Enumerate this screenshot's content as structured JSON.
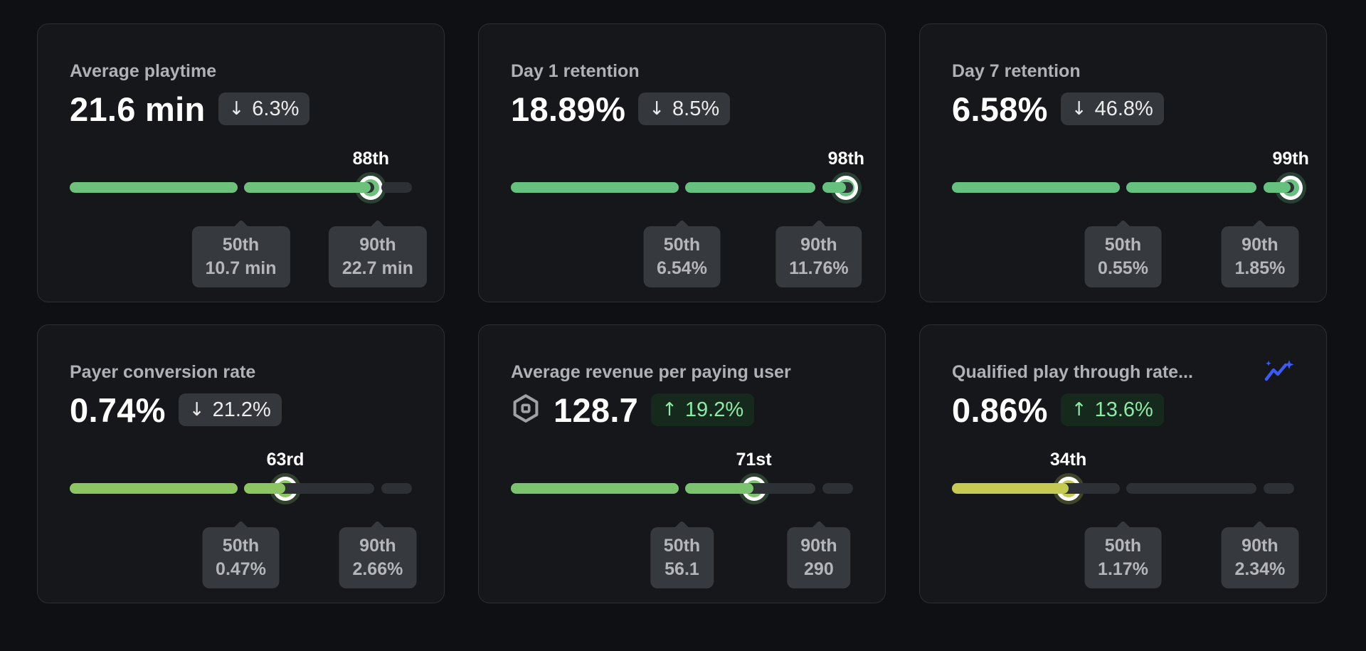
{
  "palette": {
    "page_background": "#0e1013",
    "card_background": "#15171b",
    "card_border": "#2b2e33",
    "track_remainder": "#2d3034",
    "tooltip_background": "#36393d",
    "tooltip_text": "#b4b6b9",
    "badge_down_background": "#34373b",
    "badge_down_text": "#ececed",
    "badge_up_background": "#152a1c",
    "badge_up_text": "#8fe9a6",
    "title_text": "#aeb1b5",
    "value_text": "#ffffff",
    "robux_icon_color": "#9fa1a4",
    "trend_icon_color": "#3b5af7"
  },
  "glyphs": {
    "down_arrow": "↓",
    "up_arrow": "↑"
  },
  "cards": [
    {
      "title": "Average playtime",
      "value": "21.6 min",
      "change": {
        "direction": "down",
        "label": "6.3%"
      },
      "robux_icon": false,
      "trend_icon": false,
      "percentile": 88,
      "percentile_label": "88th",
      "bar_color": "#6ec17b",
      "markers": [
        {
          "percent": 50,
          "label": "50th",
          "value": "10.7 min"
        },
        {
          "percent": 90,
          "label": "90th",
          "value": "22.7 min"
        }
      ]
    },
    {
      "title": "Day 1 retention",
      "value": "18.89%",
      "change": {
        "direction": "down",
        "label": "8.5%"
      },
      "robux_icon": false,
      "trend_icon": false,
      "percentile": 98,
      "percentile_label": "98th",
      "bar_color": "#66c17e",
      "markers": [
        {
          "percent": 50,
          "label": "50th",
          "value": "6.54%"
        },
        {
          "percent": 90,
          "label": "90th",
          "value": "11.76%"
        }
      ]
    },
    {
      "title": "Day 7 retention",
      "value": "6.58%",
      "change": {
        "direction": "down",
        "label": "46.8%"
      },
      "robux_icon": false,
      "trend_icon": false,
      "percentile": 99,
      "percentile_label": "99th",
      "bar_color": "#66c17e",
      "markers": [
        {
          "percent": 50,
          "label": "50th",
          "value": "0.55%"
        },
        {
          "percent": 90,
          "label": "90th",
          "value": "1.85%"
        }
      ]
    },
    {
      "title": "Payer conversion rate",
      "value": "0.74%",
      "change": {
        "direction": "down",
        "label": "21.2%"
      },
      "robux_icon": false,
      "trend_icon": false,
      "percentile": 63,
      "percentile_label": "63rd",
      "bar_color": "#8ec563",
      "markers": [
        {
          "percent": 50,
          "label": "50th",
          "value": "0.47%"
        },
        {
          "percent": 90,
          "label": "90th",
          "value": "2.66%"
        }
      ]
    },
    {
      "title": "Average revenue per paying user",
      "value": "128.7",
      "change": {
        "direction": "up",
        "label": "19.2%"
      },
      "robux_icon": true,
      "trend_icon": false,
      "percentile": 71,
      "percentile_label": "71st",
      "bar_color": "#7cc36f",
      "markers": [
        {
          "percent": 50,
          "label": "50th",
          "value": "56.1"
        },
        {
          "percent": 90,
          "label": "90th",
          "value": "290"
        }
      ]
    },
    {
      "title": "Qualified play through rate...",
      "value": "0.86%",
      "change": {
        "direction": "up",
        "label": "13.6%"
      },
      "robux_icon": false,
      "trend_icon": true,
      "percentile": 34,
      "percentile_label": "34th",
      "bar_color": "#c4ca52",
      "markers": [
        {
          "percent": 50,
          "label": "50th",
          "value": "1.17%"
        },
        {
          "percent": 90,
          "label": "90th",
          "value": "2.34%"
        }
      ]
    }
  ]
}
